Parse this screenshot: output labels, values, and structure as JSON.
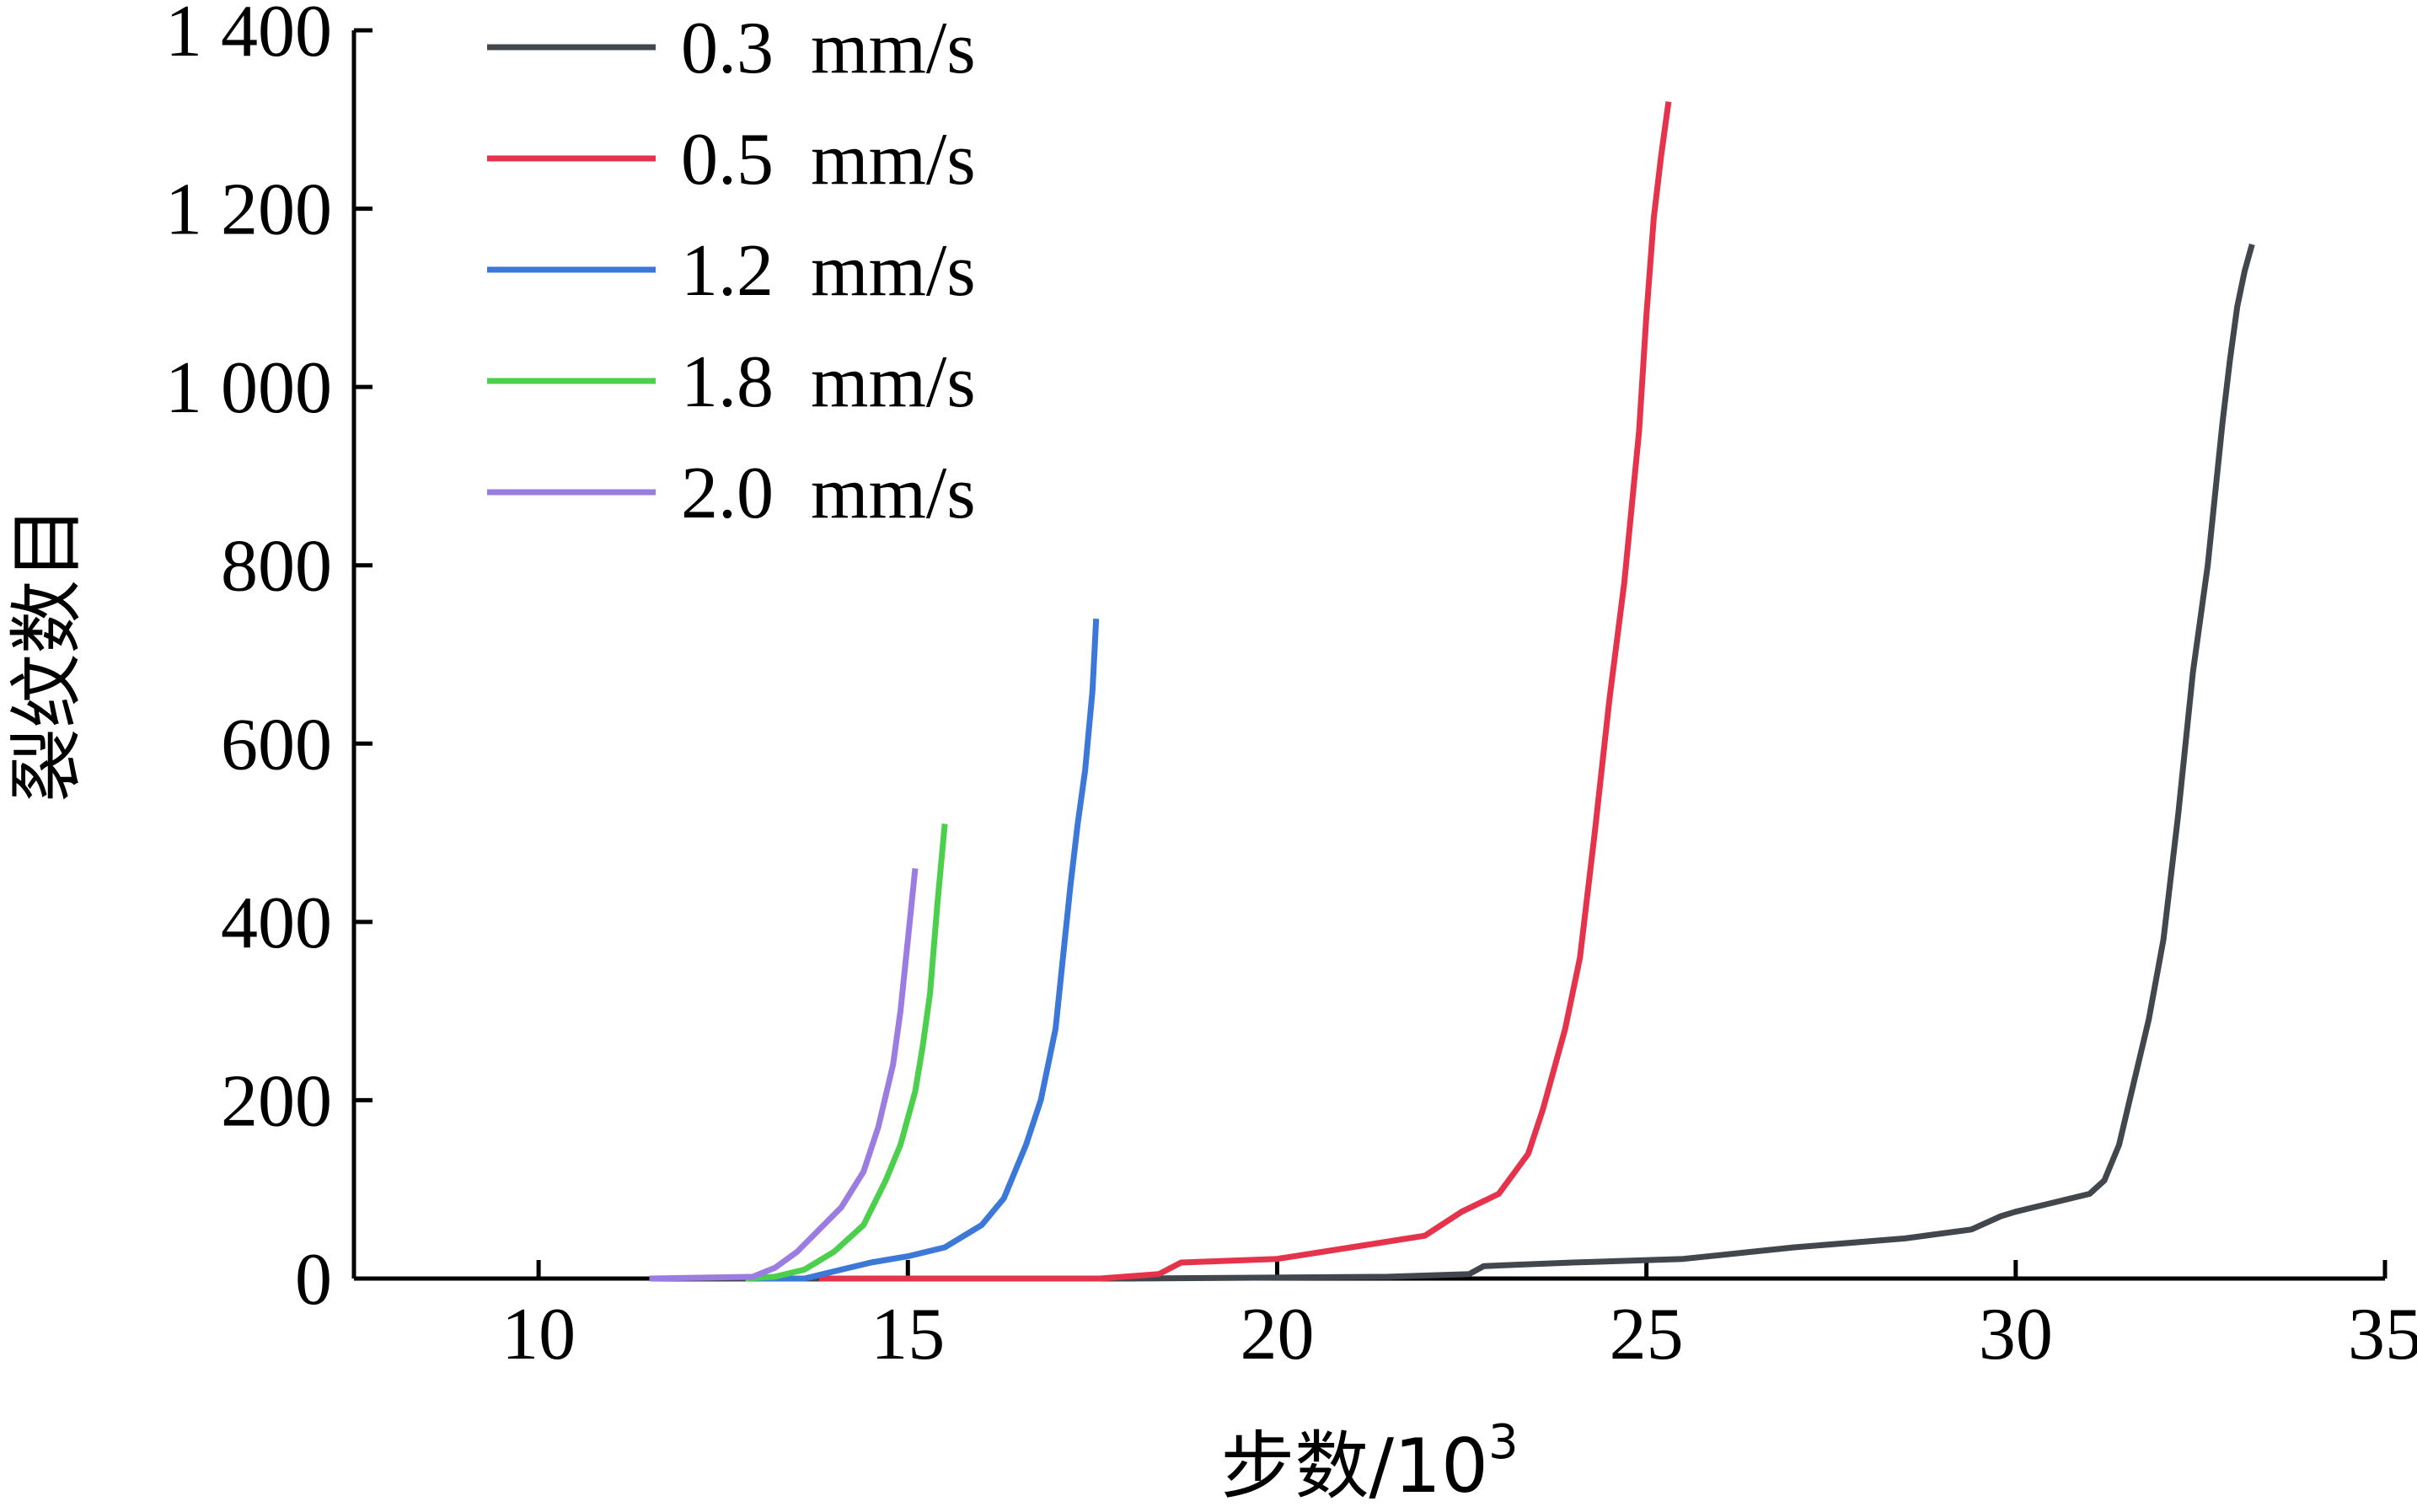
{
  "chart_data": {
    "type": "line",
    "xlabel": "步数/10",
    "xlabel_sup": "3",
    "ylabel": "裂纹数目",
    "xlim": [
      7.5,
      35
    ],
    "ylim": [
      0,
      1400
    ],
    "xticks": [
      10,
      15,
      20,
      25,
      30,
      35
    ],
    "xtick_labels": [
      "10",
      "15",
      "20",
      "25",
      "30",
      "35"
    ],
    "yticks": [
      0,
      200,
      400,
      600,
      800,
      1000,
      1200,
      1400
    ],
    "ytick_labels": [
      "0",
      "200",
      "400",
      "600",
      "800",
      "1 000",
      "1 200",
      "1 400"
    ],
    "grid": false,
    "legend_position": "top-left",
    "series": [
      {
        "name": "0.3  mm/s",
        "color": "#41474c",
        "x": [
          11.5,
          18.0,
          21.5,
          22.6,
          22.8,
          24.0,
          25.5,
          27.0,
          28.5,
          29.4,
          29.8,
          30.0,
          30.5,
          31.0,
          31.2,
          31.4,
          31.6,
          31.8,
          32.0,
          32.2,
          32.4,
          32.6,
          32.8,
          32.9,
          33.0,
          33.1,
          33.2
        ],
        "y": [
          0,
          0,
          2,
          5,
          14,
          18,
          22,
          35,
          45,
          55,
          70,
          75,
          85,
          95,
          110,
          150,
          220,
          290,
          380,
          520,
          680,
          800,
          960,
          1030,
          1090,
          1130,
          1160
        ]
      },
      {
        "name": "0.5  mm/s",
        "color": "#e5334c",
        "x": [
          13.8,
          17.6,
          18.4,
          18.7,
          20.0,
          21.0,
          22.0,
          22.5,
          23.0,
          23.4,
          23.6,
          23.9,
          24.1,
          24.3,
          24.5,
          24.7,
          24.9,
          25.0,
          25.1,
          25.2,
          25.3
        ],
        "y": [
          0,
          0,
          5,
          18,
          22,
          35,
          48,
          75,
          95,
          140,
          190,
          280,
          360,
          500,
          650,
          780,
          950,
          1080,
          1190,
          1260,
          1320
        ]
      },
      {
        "name": "1.2  mm/s",
        "color": "#3c78d8",
        "x": [
          12.8,
          13.6,
          14.0,
          14.5,
          15.0,
          15.5,
          16.0,
          16.3,
          16.6,
          16.8,
          17.0,
          17.1,
          17.2,
          17.3,
          17.4,
          17.5,
          17.55
        ],
        "y": [
          0,
          0,
          8,
          18,
          25,
          35,
          60,
          90,
          150,
          200,
          280,
          360,
          440,
          510,
          570,
          660,
          740
        ]
      },
      {
        "name": "1.8  mm/s",
        "color": "#4ccf4c",
        "x": [
          12.8,
          13.2,
          13.6,
          14.0,
          14.4,
          14.7,
          14.9,
          15.1,
          15.2,
          15.3,
          15.4,
          15.5
        ],
        "y": [
          0,
          2,
          10,
          30,
          60,
          110,
          150,
          210,
          260,
          320,
          420,
          510
        ]
      },
      {
        "name": "2.0  mm/s",
        "color": "#9b7ce0",
        "x": [
          11.5,
          12.9,
          13.2,
          13.5,
          13.8,
          14.1,
          14.4,
          14.6,
          14.8,
          14.9,
          15.0,
          15.1
        ],
        "y": [
          0,
          2,
          12,
          30,
          55,
          80,
          120,
          170,
          240,
          300,
          380,
          460
        ]
      }
    ]
  }
}
